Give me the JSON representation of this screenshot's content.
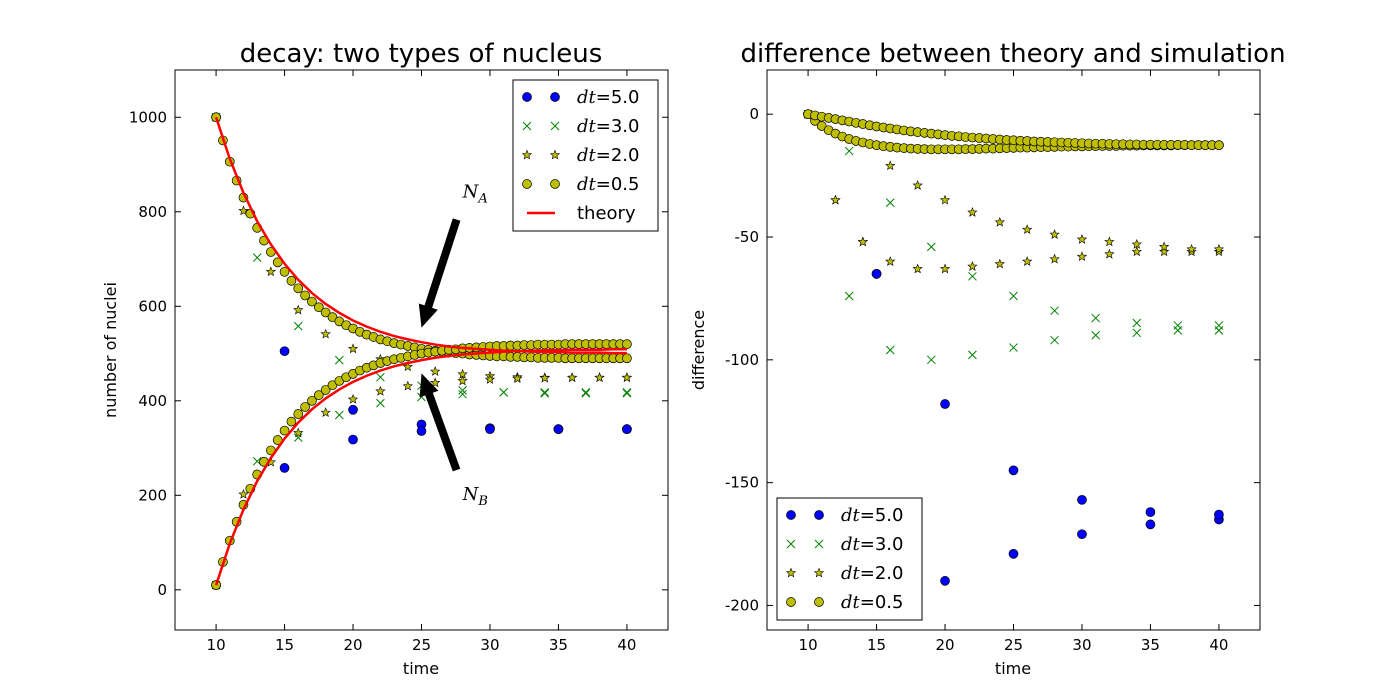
{
  "chart_data": [
    {
      "type": "scatter",
      "title": "decay: two types of nucleus",
      "xlabel": "time",
      "ylabel": "number of nuclei",
      "xlim": [
        7,
        43
      ],
      "ylim": [
        -85,
        1100
      ],
      "xticks": [
        10,
        15,
        20,
        25,
        30,
        35,
        40
      ],
      "yticks": [
        0,
        200,
        400,
        600,
        800,
        1000
      ],
      "legend_position": "top-right",
      "series": [
        {
          "name": "dt=5.0",
          "marker": "circle",
          "color": "#0000ff",
          "x": [
            10,
            15,
            20,
            25,
            30,
            35,
            40,
            10,
            15,
            20,
            25,
            30,
            35,
            40
          ],
          "y": [
            1000,
            505,
            381,
            350,
            342,
            340,
            340,
            10,
            258,
            318,
            336,
            340,
            340,
            340
          ]
        },
        {
          "name": "dt=3.0",
          "marker": "x",
          "color": "#008000",
          "x": [
            10,
            13,
            16,
            19,
            22,
            25,
            28,
            31,
            34,
            37,
            40,
            10,
            13,
            16,
            19,
            22,
            25,
            28,
            31,
            34,
            37,
            40
          ],
          "y": [
            1000,
            703,
            558,
            486,
            450,
            432,
            422,
            418,
            416,
            416,
            416,
            10,
            272,
            322,
            370,
            395,
            408,
            414,
            418,
            418,
            418,
            418
          ]
        },
        {
          "name": "dt=2.0",
          "marker": "star",
          "color": "#bfbf00",
          "x": [
            10,
            12,
            14,
            16,
            18,
            20,
            22,
            24,
            26,
            28,
            30,
            32,
            34,
            36,
            38,
            40,
            10,
            12,
            14,
            16,
            18,
            20,
            22,
            24,
            26,
            28,
            30,
            32,
            34,
            36,
            38,
            40
          ],
          "y": [
            1000,
            802,
            673,
            592,
            541,
            510,
            488,
            472,
            462,
            456,
            452,
            450,
            449,
            449,
            449,
            449,
            10,
            202,
            270,
            332,
            375,
            403,
            420,
            431,
            438,
            442,
            445,
            447,
            448,
            449,
            449,
            449
          ]
        },
        {
          "name": "dt=0.5",
          "marker": "circle",
          "color": "#bfbf00",
          "x": [
            10,
            10.5,
            11,
            11.5,
            12,
            12.5,
            13,
            13.5,
            14,
            14.5,
            15,
            15.5,
            16,
            16.5,
            17,
            17.5,
            18,
            18.5,
            19,
            19.5,
            20,
            20.5,
            21,
            21.5,
            22,
            22.5,
            23,
            23.5,
            24,
            24.5,
            25,
            25.5,
            26,
            26.5,
            27,
            27.5,
            28,
            28.5,
            29,
            29.5,
            30,
            30.5,
            31,
            31.5,
            32,
            32.5,
            33,
            33.5,
            34,
            34.5,
            35,
            35.5,
            36,
            36.5,
            37,
            37.5,
            38,
            38.5,
            39,
            39.5,
            40,
            10,
            10.5,
            11,
            11.5,
            12,
            12.5,
            13,
            13.5,
            14,
            14.5,
            15,
            15.5,
            16,
            16.5,
            17,
            17.5,
            18,
            18.5,
            19,
            19.5,
            20,
            20.5,
            21,
            21.5,
            22,
            22.5,
            23,
            23.5,
            24,
            24.5,
            25,
            25.5,
            26,
            26.5,
            27,
            27.5,
            28,
            28.5,
            29,
            29.5,
            30,
            30.5,
            31,
            31.5,
            32,
            32.5,
            33,
            33.5,
            34,
            34.5,
            35,
            35.5,
            36,
            36.5,
            37,
            37.5,
            38,
            38.5,
            39,
            39.5,
            40
          ],
          "y": [
            1000,
            951,
            906,
            866,
            830,
            796,
            766,
            739,
            715,
            693,
            673,
            654,
            638,
            623,
            610,
            598,
            587,
            577,
            568,
            560,
            553,
            546,
            540,
            535,
            530,
            526,
            522,
            519,
            516,
            513,
            510,
            508,
            506,
            504,
            502,
            501,
            500,
            498,
            497,
            496,
            495,
            494,
            494,
            493,
            493,
            492,
            492,
            491,
            491,
            491,
            491,
            490,
            490,
            490,
            490,
            490,
            490,
            490,
            490,
            490,
            490,
            10,
            59,
            104,
            144,
            180,
            214,
            244,
            271,
            295,
            317,
            337,
            356,
            372,
            387,
            400,
            412,
            423,
            433,
            442,
            450,
            457,
            464,
            470,
            475,
            480,
            484,
            488,
            491,
            494,
            497,
            500,
            502,
            504,
            506,
            508,
            509,
            511,
            512,
            513,
            514,
            515,
            516,
            516,
            517,
            517,
            518,
            518,
            519,
            519,
            519,
            519,
            520,
            520,
            520,
            520,
            520,
            520,
            520,
            520,
            520,
            520
          ]
        },
        {
          "name": "theory",
          "marker": "line",
          "color": "#ff0000",
          "x": [
            10,
            11,
            12,
            13,
            14,
            15,
            16,
            17,
            18,
            19,
            20,
            21,
            22,
            23,
            24,
            25,
            26,
            27,
            28,
            29,
            30,
            31,
            32,
            33,
            34,
            35,
            36,
            37,
            38,
            39,
            40,
            10,
            11,
            12,
            13,
            14,
            15,
            16,
            17,
            18,
            19,
            20,
            21,
            22,
            23,
            24,
            25,
            26,
            27,
            28,
            29,
            30,
            31,
            32,
            33,
            34,
            35,
            36,
            37,
            38,
            39,
            40
          ],
          "y": [
            1000,
            912,
            840,
            780,
            731,
            690,
            656,
            628,
            605,
            586,
            570,
            557,
            546,
            537,
            530,
            524,
            519,
            515,
            512,
            510,
            508,
            506,
            505,
            504,
            503,
            503,
            502,
            502,
            502,
            501,
            501,
            10,
            98,
            170,
            230,
            279,
            320,
            354,
            382,
            405,
            424,
            440,
            453,
            464,
            473,
            480,
            486,
            491,
            495,
            498,
            500,
            502,
            504,
            505,
            506,
            507,
            507,
            508,
            508,
            508,
            509,
            509
          ]
        }
      ],
      "annotations": [
        {
          "label": "N",
          "subscript": "A",
          "text_at": [
            28,
            830
          ],
          "points_to": [
            25,
            555
          ]
        },
        {
          "label": "N",
          "subscript": "B",
          "text_at": [
            28,
            190
          ],
          "points_to": [
            25,
            458
          ]
        }
      ]
    },
    {
      "type": "scatter",
      "title": "difference between theory and simulation",
      "xlabel": "time",
      "ylabel": "difference",
      "xlim": [
        7,
        43
      ],
      "ylim": [
        -210,
        18
      ],
      "xticks": [
        10,
        15,
        20,
        25,
        30,
        35,
        40
      ],
      "yticks": [
        0,
        -50,
        -100,
        -150,
        -200
      ],
      "legend_position": "lower-left",
      "series": [
        {
          "name": "dt=5.0",
          "marker": "circle",
          "color": "#0000ff",
          "x": [
            10,
            15,
            20,
            25,
            30,
            35,
            40,
            15,
            20,
            25,
            30,
            35,
            40
          ],
          "y": [
            0,
            -65,
            -190,
            -179,
            -171,
            -167,
            -165,
            -65,
            -118,
            -145,
            -157,
            -162,
            -163
          ]
        },
        {
          "name": "dt=3.0",
          "marker": "x",
          "color": "#008000",
          "x": [
            10,
            13,
            16,
            19,
            22,
            25,
            28,
            31,
            34,
            37,
            40,
            13,
            16,
            19,
            22,
            25,
            28,
            31,
            34,
            37,
            40
          ],
          "y": [
            0,
            -15,
            -36,
            -54,
            -66,
            -74,
            -80,
            -83,
            -85,
            -86,
            -86,
            -74,
            -96,
            -100,
            -98,
            -95,
            -92,
            -90,
            -89,
            -88,
            -88
          ]
        },
        {
          "name": "dt=2.0",
          "marker": "star",
          "color": "#bfbf00",
          "x": [
            10,
            12,
            14,
            16,
            18,
            20,
            22,
            24,
            26,
            28,
            30,
            32,
            34,
            36,
            38,
            40,
            12,
            14,
            16,
            18,
            20,
            22,
            24,
            26,
            28,
            30,
            32,
            34,
            36,
            38,
            40
          ],
          "y": [
            0,
            -35,
            -52,
            -60,
            -63,
            -63,
            -62,
            -61,
            -60,
            -59,
            -58,
            -57,
            -56,
            -56,
            -56,
            -56,
            -35,
            -52,
            -21,
            -29,
            -35,
            -40,
            -44,
            -47,
            -49,
            -51,
            -52,
            -53,
            -54,
            -55,
            -55
          ]
        },
        {
          "name": "dt=0.5",
          "marker": "circle",
          "color": "#bfbf00",
          "x": [
            10,
            10.5,
            11,
            11.5,
            12,
            12.5,
            13,
            13.5,
            14,
            14.5,
            15,
            15.5,
            16,
            16.5,
            17,
            17.5,
            18,
            18.5,
            19,
            19.5,
            20,
            20.5,
            21,
            21.5,
            22,
            22.5,
            23,
            23.5,
            24,
            24.5,
            25,
            25.5,
            26,
            26.5,
            27,
            27.5,
            28,
            28.5,
            29,
            29.5,
            30,
            30.5,
            31,
            31.5,
            32,
            32.5,
            33,
            33.5,
            34,
            34.5,
            35,
            35.5,
            36,
            36.5,
            37,
            37.5,
            38,
            38.5,
            39,
            39.5,
            40,
            10,
            10.5,
            11,
            11.5,
            12,
            12.5,
            13,
            13.5,
            14,
            14.5,
            15,
            15.5,
            16,
            16.5,
            17,
            17.5,
            18,
            18.5,
            19,
            19.5,
            20,
            20.5,
            21,
            21.5,
            22,
            22.5,
            23,
            23.5,
            24,
            24.5,
            25,
            25.5,
            26,
            26.5,
            27,
            27.5,
            28,
            28.5,
            29,
            29.5,
            30,
            30.5,
            31,
            31.5,
            32,
            32.5,
            33,
            33.5,
            34,
            34.5,
            35,
            35.5,
            36,
            36.5,
            37,
            37.5,
            38,
            38.5,
            39,
            39.5,
            40
          ],
          "y": [
            0,
            -2.7,
            -4.8,
            -6.5,
            -7.9,
            -9.1,
            -10.1,
            -10.9,
            -11.5,
            -12.1,
            -12.6,
            -13,
            -13.3,
            -13.6,
            -13.8,
            -14,
            -14.1,
            -14.2,
            -14.3,
            -14.3,
            -14.3,
            -14.3,
            -14.3,
            -14.2,
            -14.2,
            -14.1,
            -14,
            -14,
            -13.9,
            -13.8,
            -13.7,
            -13.6,
            -13.6,
            -13.5,
            -13.4,
            -13.4,
            -13.3,
            -13.2,
            -13.2,
            -13.1,
            -13.1,
            -13,
            -13,
            -12.9,
            -12.9,
            -12.9,
            -12.8,
            -12.8,
            -12.8,
            -12.7,
            -12.7,
            -12.7,
            -12.7,
            -12.7,
            -12.6,
            -12.6,
            -12.6,
            -12.6,
            -12.6,
            -12.6,
            -12.6,
            0,
            -0.5,
            -1,
            -1.5,
            -2,
            -2.5,
            -3,
            -3.5,
            -4,
            -4.5,
            -5,
            -5.4,
            -5.8,
            -6.2,
            -6.6,
            -7,
            -7.3,
            -7.6,
            -7.9,
            -8.2,
            -8.5,
            -8.8,
            -9,
            -9.3,
            -9.5,
            -9.7,
            -9.9,
            -10.1,
            -10.3,
            -10.5,
            -10.6,
            -10.8,
            -10.9,
            -11.1,
            -11.2,
            -11.3,
            -11.4,
            -11.5,
            -11.6,
            -11.7,
            -11.8,
            -11.9,
            -12,
            -12,
            -12.1,
            -12.2,
            -12.2,
            -12.3,
            -12.3,
            -12.4,
            -12.4,
            -12.4,
            -12.5,
            -12.5,
            -12.5,
            -12.5,
            -12.6,
            -12.6,
            -12.6,
            -12.6,
            -12.6
          ]
        }
      ]
    }
  ]
}
